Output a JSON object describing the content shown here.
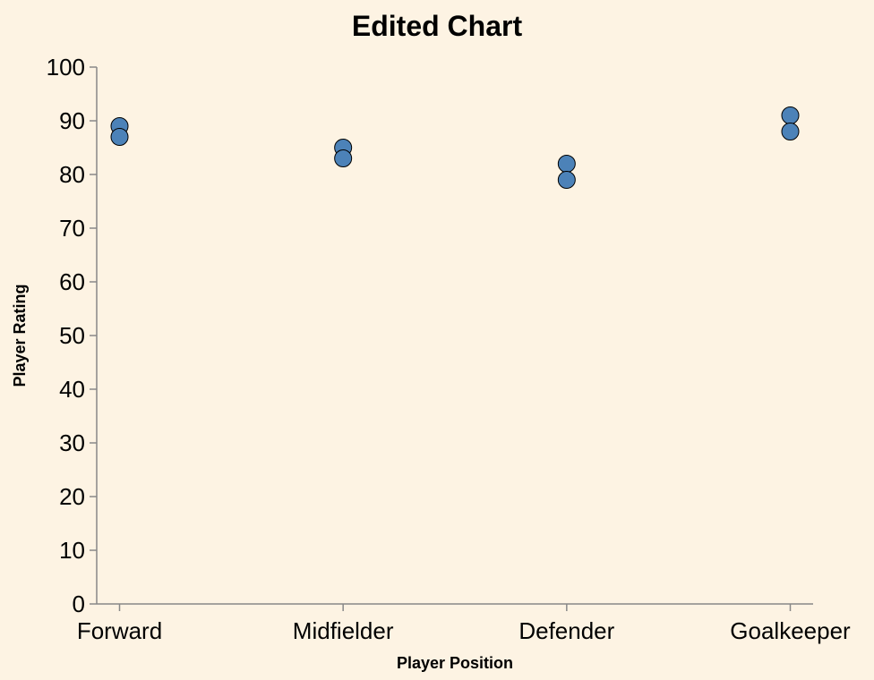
{
  "chart_data": {
    "type": "scatter",
    "title": "Edited Chart",
    "xlabel": "Player Position",
    "ylabel": "Player Rating",
    "categories": [
      "Forward",
      "Midfielder",
      "Defender",
      "Goalkeeper"
    ],
    "points": [
      {
        "x": "Forward",
        "y": 89
      },
      {
        "x": "Forward",
        "y": 87
      },
      {
        "x": "Midfielder",
        "y": 85
      },
      {
        "x": "Midfielder",
        "y": 83
      },
      {
        "x": "Defender",
        "y": 82
      },
      {
        "x": "Defender",
        "y": 79
      },
      {
        "x": "Goalkeeper",
        "y": 91
      },
      {
        "x": "Goalkeeper",
        "y": 88
      }
    ],
    "ylim": [
      0,
      100
    ],
    "yticks": [
      0,
      10,
      20,
      30,
      40,
      50,
      60,
      70,
      80,
      90,
      100
    ],
    "grid": false,
    "point_color": "#4c82b8",
    "background": "#fdf3e3"
  }
}
